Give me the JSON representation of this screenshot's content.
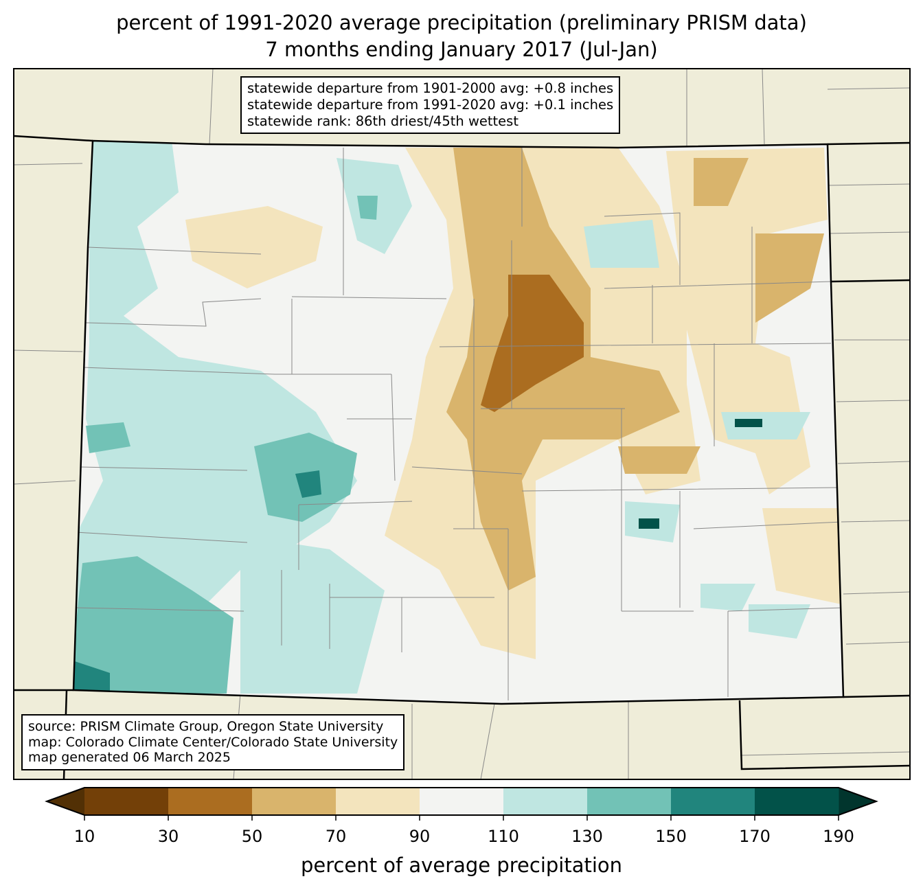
{
  "title": {
    "line1": "percent of 1991-2020 average precipitation (preliminary PRISM data)",
    "line2": "7 months ending January 2017 (Jul-Jan)"
  },
  "stats": {
    "line1": "statewide departure from 1901-2000 avg: +0.8 inches",
    "line2": "statewide departure from 1991-2020 avg: +0.1 inches",
    "line3": "statewide rank: 86th driest/45th wettest"
  },
  "source": {
    "line1": "source: PRISM Climate Group, Oregon State University",
    "line2": "map: Colorado Climate Center/Colorado State University",
    "line3": "map generated 06 March 2025"
  },
  "colorbar": {
    "label": "percent of average precipitation",
    "ticks": [
      "10",
      "30",
      "50",
      "70",
      "90",
      "110",
      "130",
      "150",
      "170",
      "190"
    ],
    "under_color": "#523005",
    "over_color": "#01352d",
    "colors": [
      "#734008",
      "#ab6d20",
      "#d9b46c",
      "#f3e4bd",
      "#f3f4f2",
      "#bfe6e1",
      "#72c2b6",
      "#21857d",
      "#025249"
    ]
  },
  "map": {
    "background": "#efedd9"
  }
}
